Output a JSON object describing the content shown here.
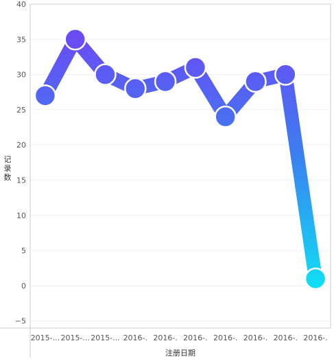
{
  "chart_data": {
    "type": "line",
    "categories": [
      "2015-...",
      "2015-...",
      "2015-...",
      "2016-.",
      "2016-.",
      "2016-.",
      "2016-.",
      "2016-.",
      "2016-.",
      "2016-."
    ],
    "series": [
      {
        "values": [
          27,
          35,
          30,
          28,
          29,
          31,
          24,
          29,
          30,
          1
        ]
      }
    ],
    "xlabel": "注册日期",
    "ylabel": "记录数",
    "ylim": [
      -6,
      40
    ],
    "yticks": [
      -5,
      0,
      5,
      10,
      15,
      20,
      25,
      30,
      35,
      40
    ],
    "grid": true,
    "colors": {
      "gradient_top": "#6a4cf5",
      "gradient_mid": "#3d7cf0",
      "gradient_bottom": "#0fe0f5",
      "grid": "#f0f0f0",
      "axis": "#cccccc"
    }
  }
}
